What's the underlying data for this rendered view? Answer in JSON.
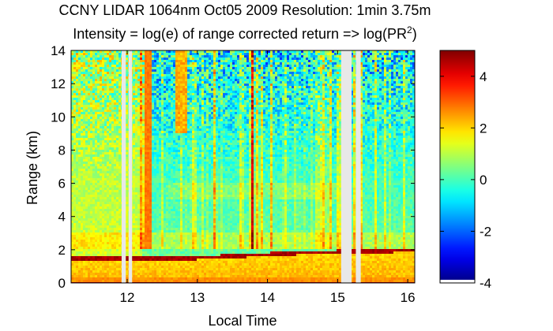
{
  "chart_data": {
    "type": "heatmap",
    "title": "CCNY LIDAR 1064nm Oct05 2009 Resolution: 1min 3.75m",
    "subtitle_prefix": "Intensity = log(e) of range corrected return => log(PR",
    "subtitle_sup": "2",
    "subtitle_suffix": ")",
    "xlabel": "Local Time",
    "ylabel": "Range (km)",
    "xlim": [
      11.2,
      16.1
    ],
    "ylim": [
      0,
      14
    ],
    "xticks": [
      12,
      13,
      14,
      15,
      16
    ],
    "yticks": [
      0,
      2,
      4,
      6,
      8,
      10,
      12,
      14
    ],
    "clim": [
      -4,
      5
    ],
    "colorbar_ticks": [
      -4,
      -2,
      0,
      2,
      4
    ],
    "colormap": "jet",
    "boundary_layer_top_km": [
      {
        "time": 12.2,
        "height": 1.45
      },
      {
        "time": 13.0,
        "height": 1.5
      },
      {
        "time": 13.75,
        "height": 1.65
      },
      {
        "time": 14.5,
        "height": 1.8
      },
      {
        "time": 15.0,
        "height": 1.85
      },
      {
        "time": 16.05,
        "height": 1.95
      }
    ],
    "data_gaps": [
      {
        "start": 11.92,
        "end": 11.98
      },
      {
        "start": 12.02,
        "end": 12.07
      },
      {
        "start": 15.05,
        "end": 15.2
      },
      {
        "start": 15.26,
        "end": 15.33
      }
    ]
  }
}
